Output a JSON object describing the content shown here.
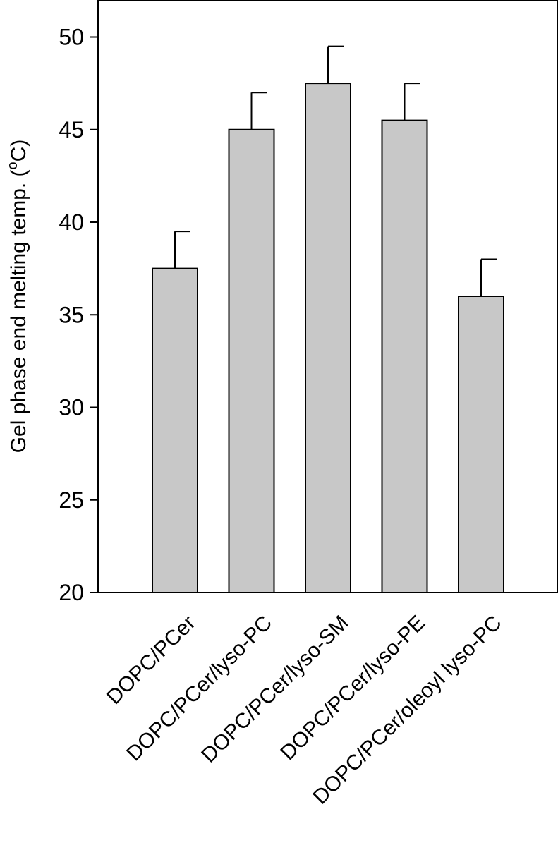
{
  "chart_data": {
    "type": "bar",
    "title": "",
    "ylabel_main": "Gel phase end melting temp. (",
    "ylabel_sup": "o",
    "ylabel_unit": "C)",
    "xlabel": "",
    "ylim": [
      20,
      52
    ],
    "yticks": [
      20,
      25,
      30,
      35,
      40,
      45,
      50
    ],
    "categories": [
      "DOPC/PCer",
      "DOPC/PCer/lyso-PC",
      "DOPC/PCer/lyso-SM",
      "DOPC/PCer/lyso-PE",
      "DOPC/PCer/oleoyl lyso-PC"
    ],
    "values": [
      37.5,
      45.0,
      47.5,
      45.5,
      36.0
    ],
    "errors": [
      2.0,
      2.0,
      2.0,
      2.0,
      2.0
    ],
    "bar_color": "#c8c8c8",
    "edge_color": "#000000",
    "grid": false,
    "legend": "none"
  }
}
